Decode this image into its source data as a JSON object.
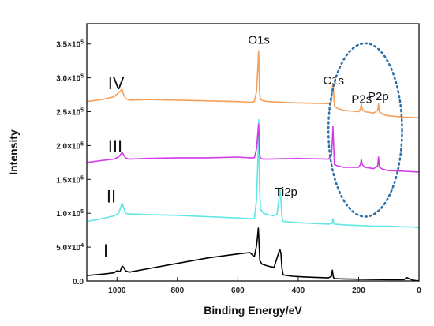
{
  "chart_data": {
    "type": "line",
    "xlabel": "Binding Energy/eV",
    "ylabel": "Intensity",
    "xlim": [
      1100,
      0
    ],
    "ylim": [
      0,
      380000
    ],
    "x_ticks": [
      {
        "value": 1000,
        "label": "1000"
      },
      {
        "value": 800,
        "label": "800"
      },
      {
        "value": 600,
        "label": "600"
      },
      {
        "value": 400,
        "label": "400"
      },
      {
        "value": 200,
        "label": "200"
      },
      {
        "value": 0,
        "label": "0"
      }
    ],
    "y_ticks": [
      {
        "value": 0,
        "mant": "0.0",
        "exp": ""
      },
      {
        "value": 50000,
        "mant": "5.0×10",
        "exp": "4"
      },
      {
        "value": 100000,
        "mant": "1.0×10",
        "exp": "5"
      },
      {
        "value": 150000,
        "mant": "1.5×10",
        "exp": "5"
      },
      {
        "value": 200000,
        "mant": "2.0×10",
        "exp": "5"
      },
      {
        "value": 250000,
        "mant": "2.5×10",
        "exp": "5"
      },
      {
        "value": 300000,
        "mant": "3.0×10",
        "exp": "5"
      },
      {
        "value": 350000,
        "mant": "3.5×10",
        "exp": "5"
      }
    ],
    "series": [
      {
        "id": "I",
        "color": "#000000",
        "x": [
          1100,
          1050,
          1010,
          1000,
          990,
          983,
          978,
          972,
          960,
          900,
          800,
          700,
          600,
          560,
          545,
          538,
          534,
          532,
          530,
          527,
          520,
          500,
          480,
          470,
          463,
          460,
          457,
          454,
          450,
          420,
          380,
          300,
          290,
          287,
          285,
          283,
          280,
          250,
          200,
          150,
          100,
          50,
          40,
          25,
          20,
          10,
          0
        ],
        "y": [
          8000,
          10000,
          12000,
          15000,
          14000,
          22000,
          20000,
          15000,
          13000,
          18000,
          26000,
          34000,
          40000,
          42000,
          36000,
          52000,
          68000,
          78000,
          58000,
          30000,
          25000,
          22000,
          20000,
          34000,
          44000,
          46000,
          40000,
          20000,
          9000,
          7000,
          6000,
          4500,
          7000,
          16000,
          10000,
          5000,
          3500,
          3000,
          2600,
          2200,
          2000,
          2000,
          5000,
          2000,
          1000,
          500,
          200
        ]
      },
      {
        "id": "II",
        "color": "#5fe6e6",
        "x": [
          1100,
          1050,
          1010,
          995,
          983,
          978,
          972,
          960,
          900,
          800,
          700,
          600,
          560,
          545,
          538,
          533,
          531,
          530,
          528,
          525,
          515,
          500,
          480,
          470,
          463,
          460,
          457,
          454,
          450,
          400,
          300,
          288,
          285,
          282,
          280,
          250,
          200,
          150,
          100,
          50,
          20,
          10,
          0
        ],
        "y": [
          88000,
          92000,
          96000,
          100000,
          115000,
          108000,
          100000,
          99000,
          98000,
          97000,
          95000,
          93000,
          92000,
          92000,
          120000,
          185000,
          238000,
          200000,
          140000,
          106000,
          100000,
          98000,
          96000,
          99000,
          125000,
          135000,
          118000,
          96000,
          88000,
          86000,
          84000,
          85000,
          92000,
          85000,
          84000,
          83000,
          82000,
          81000,
          81000,
          80000,
          80000,
          79000,
          79000
        ]
      },
      {
        "id": "III",
        "color": "#d23ce6",
        "x": [
          1100,
          1050,
          1010,
          995,
          983,
          978,
          972,
          960,
          900,
          800,
          700,
          600,
          560,
          545,
          538,
          533,
          531,
          530,
          528,
          525,
          515,
          500,
          400,
          300,
          290,
          287,
          285,
          283,
          280,
          270,
          250,
          200,
          194,
          191,
          188,
          180,
          150,
          137,
          134,
          131,
          120,
          100,
          50,
          0
        ],
        "y": [
          175000,
          178000,
          180000,
          183000,
          190000,
          186000,
          182000,
          180000,
          181000,
          182000,
          182000,
          183000,
          182000,
          182000,
          195000,
          222000,
          232000,
          215000,
          190000,
          181000,
          180000,
          180000,
          181000,
          180000,
          185000,
          208000,
          228000,
          205000,
          172000,
          170000,
          168000,
          168000,
          172000,
          180000,
          172000,
          168000,
          166000,
          170000,
          183000,
          168000,
          165000,
          163000,
          162000,
          161000
        ]
      },
      {
        "id": "IV",
        "color": "#f5a05a",
        "x": [
          1100,
          1050,
          1010,
          995,
          983,
          978,
          972,
          960,
          900,
          800,
          700,
          600,
          560,
          545,
          538,
          533,
          531,
          530,
          528,
          525,
          515,
          500,
          400,
          300,
          290,
          287,
          285,
          283,
          280,
          270,
          250,
          200,
          194,
          191,
          188,
          180,
          150,
          137,
          134,
          131,
          120,
          100,
          50,
          0
        ],
        "y": [
          265000,
          268000,
          272000,
          278000,
          283000,
          275000,
          270000,
          267000,
          268000,
          267000,
          266000,
          265000,
          264000,
          265000,
          280000,
          320000,
          340000,
          320000,
          280000,
          268000,
          266000,
          265000,
          263000,
          262000,
          265000,
          282000,
          292000,
          282000,
          258000,
          255000,
          252000,
          250000,
          254000,
          262000,
          254000,
          250000,
          248000,
          252000,
          262000,
          250000,
          246000,
          244000,
          242000,
          241000
        ]
      }
    ],
    "roman_labels": [
      {
        "text": "IV",
        "x": 1030,
        "y": 283000
      },
      {
        "text": "III",
        "x": 1030,
        "y": 190000
      },
      {
        "text": "II",
        "x": 1035,
        "y": 116000
      },
      {
        "text": "I",
        "x": 1045,
        "y": 36000
      }
    ],
    "peak_labels": [
      {
        "text": "O1s",
        "x": 530,
        "y": 350000
      },
      {
        "text": "C1s",
        "x": 283,
        "y": 290000
      },
      {
        "text": "P2s",
        "x": 190,
        "y": 263000
      },
      {
        "text": "P2p",
        "x": 135,
        "y": 267000
      },
      {
        "text": "Ti2p",
        "x": 440,
        "y": 126000
      }
    ],
    "highlight_ellipse": {
      "cx": 178,
      "cy": 223000,
      "rx": 122,
      "ry": 128000,
      "color": "#2c6fa8"
    }
  }
}
